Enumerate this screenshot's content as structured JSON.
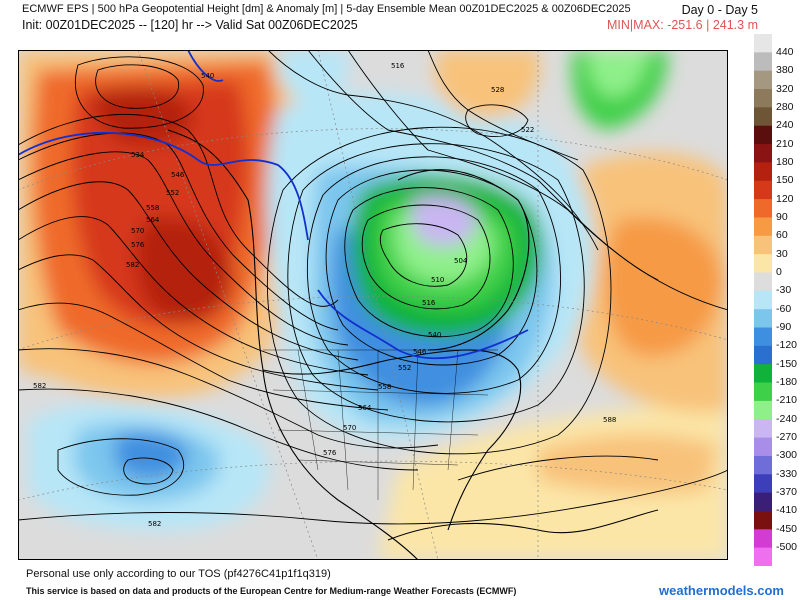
{
  "header": {
    "title": "ECMWF EPS | 500 hPa Geopotential Height [dm] & Anomaly [m] | 5-day Ensemble Mean 00Z01DEC2025 & 00Z06DEC2025",
    "init_line": "Init: 00Z01DEC2025 -- [120] hr --> Valid Sat 00Z06DEC2025",
    "day_range": "Day 0 - Day 5",
    "minmax": "MIN|MAX: -251.6 | 241.3 m"
  },
  "colorbar": {
    "labels": [
      "440",
      "380",
      "320",
      "280",
      "240",
      "210",
      "180",
      "150",
      "120",
      "90",
      "60",
      "30",
      "0",
      "-30",
      "-60",
      "-90",
      "-120",
      "-150",
      "-180",
      "-210",
      "-240",
      "-270",
      "-300",
      "-330",
      "-370",
      "-410",
      "-450",
      "-500"
    ],
    "colors": [
      "#e6e6e6",
      "#bcbcbc",
      "#a59880",
      "#8d7a5c",
      "#6e5536",
      "#5a0e0e",
      "#8a1414",
      "#b4220f",
      "#d6381a",
      "#ef6a2a",
      "#f69a44",
      "#f8c27a",
      "#fbe6a8",
      "#dddddd",
      "#b7e6f7",
      "#7cc6ee",
      "#3f8fe0",
      "#2b6fcf",
      "#11b23a",
      "#3fd04a",
      "#8ff08a",
      "#c9b6f2",
      "#a88ee8",
      "#6f6ed8",
      "#3d3fba",
      "#3a1f78",
      "#7a1010",
      "#d23cd2",
      "#ee70ee"
    ]
  },
  "map": {
    "height_labels": [
      "540",
      "534",
      "546",
      "552",
      "558",
      "564",
      "570",
      "576",
      "582",
      "528",
      "522",
      "516",
      "504",
      "510",
      "516",
      "540",
      "546",
      "552",
      "558",
      "564",
      "570",
      "576",
      "582",
      "588",
      "582"
    ]
  },
  "footer": {
    "tos": "Personal use only according to our TOS (pf4276C41p1f1q319)",
    "credit": "This service is based on data and products of the European Centre for Medium-range Weather Forecasts (ECMWF)",
    "watermark": "weathermodels.com"
  }
}
